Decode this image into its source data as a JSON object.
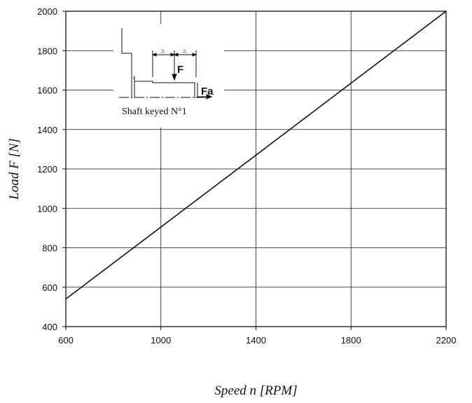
{
  "chart_data": {
    "type": "line",
    "xlabel": "Speed n [RPM]",
    "ylabel": "Load F [N]",
    "xlim": [
      600,
      2200
    ],
    "ylim": [
      400,
      2000
    ],
    "xticks": [
      600,
      1000,
      1400,
      1800,
      2200
    ],
    "yticks": [
      400,
      600,
      800,
      1000,
      1200,
      1400,
      1600,
      1800,
      2000
    ],
    "x_tick_labels": [
      "600",
      "1000",
      "1400",
      "1800",
      "2200"
    ],
    "y_tick_labels": [
      "400",
      "600",
      "800",
      "1000",
      "1200",
      "1400",
      "1600",
      "1800",
      "2000"
    ],
    "grid": true,
    "series": [
      {
        "x": [
          600,
          2200
        ],
        "values": [
          540,
          2000
        ],
        "color": "#111111"
      }
    ]
  },
  "inset": {
    "caption": "Shaft keyed N°1",
    "force_label": "F",
    "axial_label": "Fa",
    "equal_mark_left": "=",
    "equal_mark_right": "="
  }
}
